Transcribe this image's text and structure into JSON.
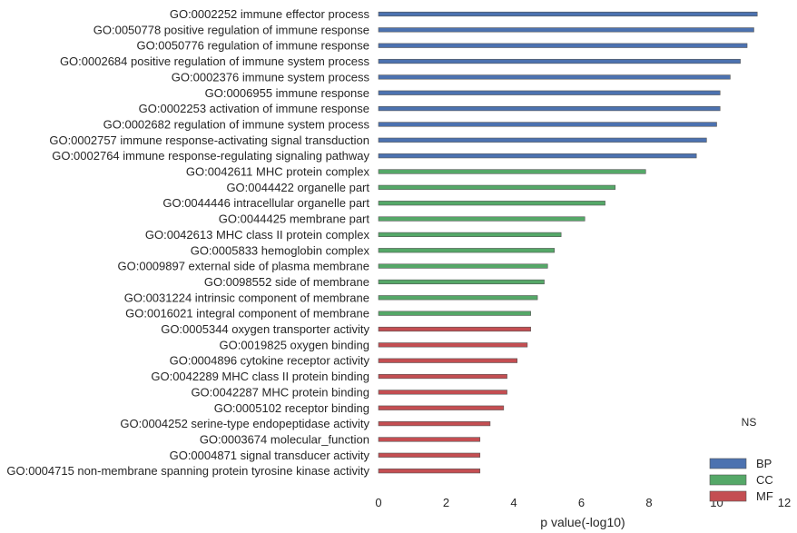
{
  "chart_data": {
    "type": "bar",
    "orientation": "horizontal",
    "categories": [
      "GO:0002252 immune effector process",
      "GO:0050778 positive regulation of immune response",
      "GO:0050776 regulation of immune response",
      "GO:0002684 positive regulation of immune system process",
      "GO:0002376 immune system process",
      "GO:0006955 immune response",
      "GO:0002253 activation of immune response",
      "GO:0002682 regulation of immune system process",
      "GO:0002757 immune response-activating signal transduction",
      "GO:0002764 immune response-regulating signaling pathway",
      "GO:0042611 MHC protein complex",
      "GO:0044422 organelle part",
      "GO:0044446 intracellular organelle part",
      "GO:0044425 membrane part",
      "GO:0042613 MHC class II protein complex",
      "GO:0005833 hemoglobin complex",
      "GO:0009897 external side of plasma membrane",
      "GO:0098552 side of membrane",
      "GO:0031224 intrinsic component of membrane",
      "GO:0016021 integral component of membrane",
      "GO:0005344 oxygen transporter activity",
      "GO:0019825 oxygen binding",
      "GO:0004896 cytokine receptor activity",
      "GO:0042289 MHC class II protein binding",
      "GO:0042287 MHC protein binding",
      "GO:0005102 receptor binding",
      "GO:0004252 serine-type endopeptidase activity",
      "GO:0003674 molecular_function",
      "GO:0004871 signal transducer activity",
      "GO:0004715 non-membrane spanning protein tyrosine kinase activity"
    ],
    "values": [
      11.2,
      11.1,
      10.9,
      10.7,
      10.4,
      10.1,
      10.1,
      10.0,
      9.7,
      9.4,
      7.9,
      7.0,
      6.7,
      6.1,
      5.4,
      5.2,
      5.0,
      4.9,
      4.7,
      4.5,
      4.5,
      4.4,
      4.1,
      3.8,
      3.8,
      3.7,
      3.3,
      3.0,
      3.0,
      3.0
    ],
    "groups": [
      "BP",
      "BP",
      "BP",
      "BP",
      "BP",
      "BP",
      "BP",
      "BP",
      "BP",
      "BP",
      "CC",
      "CC",
      "CC",
      "CC",
      "CC",
      "CC",
      "CC",
      "CC",
      "CC",
      "CC",
      "MF",
      "MF",
      "MF",
      "MF",
      "MF",
      "MF",
      "MF",
      "MF",
      "MF",
      "MF"
    ],
    "xlabel": "p value(-log10)",
    "ylabel": "",
    "xlim": [
      0,
      12
    ],
    "xticks": [
      0,
      2,
      4,
      6,
      8,
      10,
      12
    ],
    "grid": false,
    "legend": {
      "title": "NS",
      "placement": "bottom-right",
      "entries": [
        {
          "name": "BP",
          "color": "#4c72b0"
        },
        {
          "name": "CC",
          "color": "#55a868"
        },
        {
          "name": "MF",
          "color": "#c44e52"
        }
      ]
    }
  }
}
